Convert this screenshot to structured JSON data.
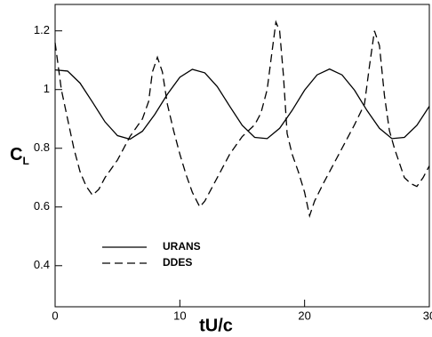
{
  "chart_data": {
    "type": "line",
    "x_label": "tU/c",
    "y_label": "C",
    "y_label_subscript": "L",
    "xlim": [
      0,
      30
    ],
    "ylim": [
      0.26,
      1.29
    ],
    "xticks": [
      0,
      10,
      20,
      30
    ],
    "yticks": [
      0.4,
      0.6,
      0.8,
      1,
      1.2
    ],
    "grid": false,
    "legend": "lower left",
    "series": [
      {
        "name": "URANS",
        "color": "#000000",
        "line_style": "solid",
        "x": [
          0,
          1,
          2,
          3,
          4,
          5,
          6,
          7,
          8,
          9,
          10,
          11,
          12,
          13,
          14,
          15,
          16,
          17,
          18,
          19,
          20,
          21,
          22,
          23,
          24,
          25,
          26,
          27,
          28,
          29,
          30
        ],
        "values": [
          1.067,
          1.063,
          1.022,
          0.957,
          0.89,
          0.843,
          0.831,
          0.858,
          0.916,
          0.984,
          1.042,
          1.069,
          1.057,
          1.01,
          0.943,
          0.878,
          0.837,
          0.833,
          0.868,
          0.929,
          0.998,
          1.05,
          1.07,
          1.05,
          0.998,
          0.929,
          0.868,
          0.833,
          0.837,
          0.878,
          0.943
        ]
      },
      {
        "name": "DDES",
        "color": "#000000",
        "line_style": "dashed",
        "x": [
          0,
          0.5,
          1,
          1.5,
          2,
          2.5,
          3,
          3.5,
          4,
          5,
          6,
          7,
          7.5,
          7.8,
          8.2,
          8.6,
          9,
          9.5,
          10,
          10.5,
          11,
          11.6,
          12,
          13,
          14,
          15,
          16,
          16.5,
          17,
          17.3,
          17.7,
          18,
          18.3,
          18.6,
          19,
          19.5,
          20,
          20.4,
          20.8,
          21.5,
          22,
          23,
          24,
          24.8,
          25.2,
          25.6,
          26,
          26.4,
          26.8,
          27.2,
          27.6,
          28,
          28.5,
          29,
          29.5,
          30
        ],
        "values": [
          1.16,
          1.0,
          0.9,
          0.8,
          0.72,
          0.67,
          0.64,
          0.66,
          0.7,
          0.76,
          0.84,
          0.9,
          0.96,
          1.06,
          1.11,
          1.06,
          0.95,
          0.86,
          0.78,
          0.71,
          0.65,
          0.6,
          0.62,
          0.7,
          0.78,
          0.84,
          0.88,
          0.92,
          1.0,
          1.1,
          1.23,
          1.2,
          1.05,
          0.85,
          0.78,
          0.72,
          0.65,
          0.57,
          0.62,
          0.68,
          0.72,
          0.8,
          0.88,
          0.95,
          1.08,
          1.2,
          1.15,
          0.98,
          0.86,
          0.8,
          0.75,
          0.7,
          0.68,
          0.67,
          0.7,
          0.74
        ]
      }
    ]
  }
}
